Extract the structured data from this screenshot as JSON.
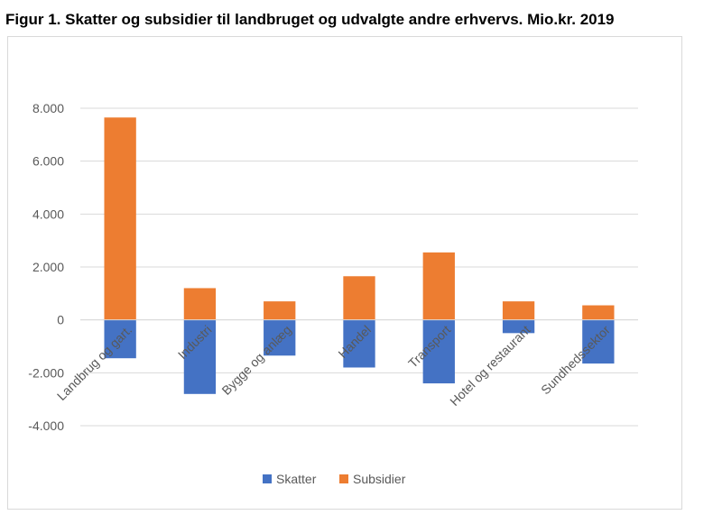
{
  "chart_data": {
    "type": "bar",
    "stacked": true,
    "title": "Figur 1. Skatter og subsidier til landbruget og udvalgte andre erhvervs. Mio.kr. 2019",
    "categories": [
      "Landbrug og gart.",
      "Industri",
      "Bygge og anlæg",
      "Handel",
      "Transport",
      "Hotel og restaurant",
      "Sundhedssektor"
    ],
    "series": [
      {
        "name": "Skatter",
        "color": "#4472c4",
        "values": [
          -1450,
          -2800,
          -1350,
          -1800,
          -2400,
          -500,
          -1650
        ]
      },
      {
        "name": "Subsidier",
        "color": "#ed7d31",
        "values": [
          7650,
          1200,
          700,
          1650,
          2550,
          700,
          550
        ]
      }
    ],
    "ylim": [
      -4000,
      8000
    ],
    "yticks": [
      8000,
      6000,
      4000,
      2000,
      0,
      -2000,
      -4000
    ],
    "ytick_labels": [
      "8.000",
      "6.000",
      "4.000",
      "2.000",
      "0",
      "-2.000",
      "-4.000"
    ],
    "grid": true,
    "legend_position": "bottom"
  }
}
